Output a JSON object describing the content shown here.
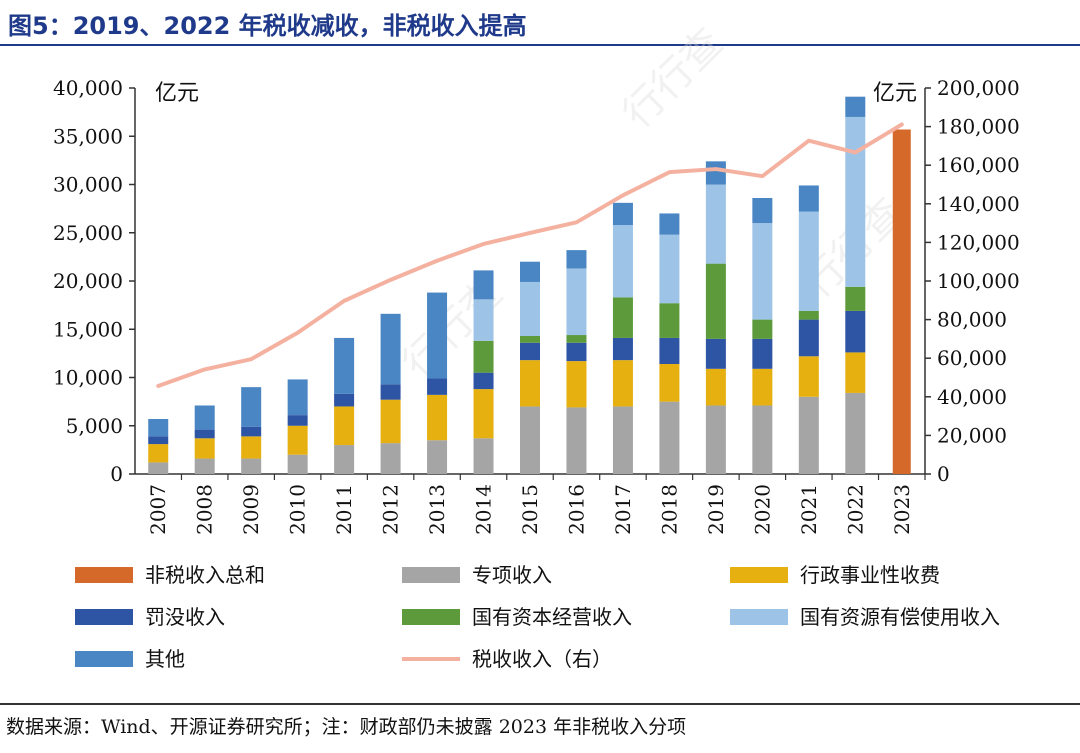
{
  "title": "图5：2019、2022 年税收减收，非税收入提高",
  "source": "数据来源：Wind、开源证券研究所；注：财政部仍未披露 2023 年非税收入分项",
  "chart_data": {
    "type": "bar",
    "stacked": true,
    "title": "图5：2019、2022 年税收减收，非税收入提高",
    "ylabel_left": "亿元",
    "ylabel_right": "亿元",
    "ylim_left": [
      0,
      40000
    ],
    "ylim_right": [
      0,
      200000
    ],
    "yticks_left": [
      "0",
      "5,000",
      "10,000",
      "15,000",
      "20,000",
      "25,000",
      "30,000",
      "35,000",
      "40,000"
    ],
    "yticks_right": [
      "0",
      "20,000",
      "40,000",
      "60,000",
      "80,000",
      "100,000",
      "120,000",
      "140,000",
      "160,000",
      "180,000",
      "200,000"
    ],
    "categories": [
      "2007",
      "2008",
      "2009",
      "2010",
      "2011",
      "2012",
      "2013",
      "2014",
      "2015",
      "2016",
      "2017",
      "2018",
      "2019",
      "2020",
      "2021",
      "2022",
      "2023"
    ],
    "series": [
      {
        "name": "专项收入",
        "color": "#a5a5a5",
        "axis": "left",
        "values": [
          1200,
          1600,
          1600,
          2000,
          3000,
          3200,
          3500,
          3700,
          7000,
          6900,
          7000,
          7500,
          7100,
          7100,
          8000,
          8400,
          null
        ]
      },
      {
        "name": "行政事业性收费",
        "color": "#e6b011",
        "axis": "left",
        "values": [
          1900,
          2100,
          2300,
          3000,
          4000,
          4500,
          4700,
          5100,
          4800,
          4800,
          4800,
          3900,
          3800,
          3800,
          4200,
          4200,
          null
        ]
      },
      {
        "name": "罚没收入",
        "color": "#2e54a4",
        "axis": "left",
        "values": [
          800,
          900,
          1000,
          1100,
          1300,
          1600,
          1700,
          1700,
          1800,
          1900,
          2300,
          2700,
          3100,
          3100,
          3800,
          4300,
          null
        ]
      },
      {
        "name": "国有资本经营收入",
        "color": "#5d9a3b",
        "axis": "left",
        "values": [
          0,
          0,
          0,
          0,
          0,
          0,
          0,
          3300,
          700,
          800,
          4200,
          3600,
          7800,
          2000,
          900,
          2500,
          null
        ]
      },
      {
        "name": "国有资源有偿使用收入",
        "color": "#9dc3e6",
        "axis": "left",
        "values": [
          0,
          0,
          0,
          0,
          0,
          0,
          0,
          4300,
          5600,
          6900,
          7500,
          7100,
          8200,
          10000,
          10300,
          17600,
          null
        ]
      },
      {
        "name": "其他",
        "color": "#4a86c3",
        "axis": "left",
        "values": [
          1800,
          2500,
          4100,
          3700,
          5800,
          7300,
          8900,
          3000,
          2100,
          1900,
          2300,
          2200,
          2400,
          2600,
          2700,
          2100,
          null
        ]
      },
      {
        "name": "非税收入总和",
        "color": "#d4692a",
        "axis": "left",
        "values": [
          null,
          null,
          null,
          null,
          null,
          null,
          null,
          null,
          null,
          null,
          null,
          null,
          null,
          null,
          null,
          null,
          35700
        ]
      }
    ],
    "line": {
      "name": "税收收入（右）",
      "color": "#f4b1a0",
      "axis": "right",
      "values": [
        45600,
        54200,
        59500,
        73200,
        89700,
        100600,
        110500,
        119200,
        124900,
        130400,
        144400,
        156400,
        158000,
        154300,
        172700,
        166600,
        181100
      ]
    },
    "legend": [
      {
        "label": "非税收入总和",
        "kind": "bar",
        "color": "#d4692a"
      },
      {
        "label": "专项收入",
        "kind": "bar",
        "color": "#a5a5a5"
      },
      {
        "label": "行政事业性收费",
        "kind": "bar",
        "color": "#e6b011"
      },
      {
        "label": "罚没收入",
        "kind": "bar",
        "color": "#2e54a4"
      },
      {
        "label": "国有资本经营收入",
        "kind": "bar",
        "color": "#5d9a3b"
      },
      {
        "label": "国有资源有偿使用收入",
        "kind": "bar",
        "color": "#9dc3e6"
      },
      {
        "label": "其他",
        "kind": "bar",
        "color": "#4a86c3"
      },
      {
        "label": "税收收入（右）",
        "kind": "line",
        "color": "#f4b1a0"
      }
    ],
    "legend_position": "bottom"
  }
}
